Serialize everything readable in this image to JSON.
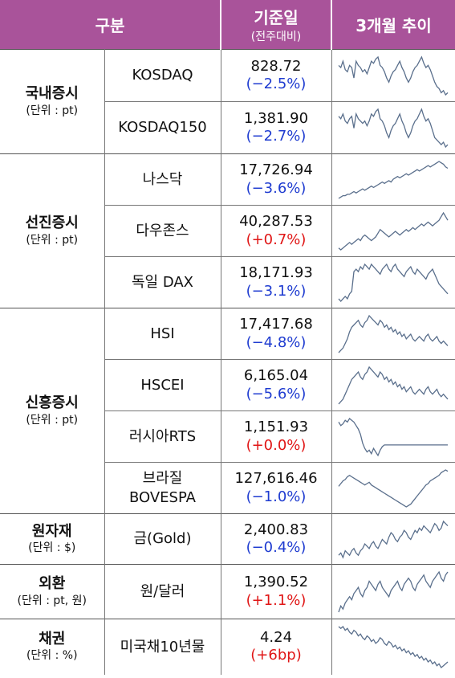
{
  "header": {
    "category": "구분",
    "base_date": "기준일",
    "base_date_sub": "(전주대비)",
    "trend": "3개월 추이"
  },
  "groups": [
    {
      "title": "국내증시",
      "unit": "(단위 : pt)",
      "rows": [
        {
          "name": "KOSDAQ",
          "value": "828.72",
          "change": "(−2.5%)",
          "dir": "neg",
          "trend": [
            58,
            57,
            60,
            56,
            55,
            58,
            57,
            52,
            60,
            58,
            57,
            55,
            56,
            54,
            57,
            60,
            59,
            61,
            62,
            58,
            57,
            55,
            52,
            50,
            53,
            55,
            56,
            58,
            60,
            57,
            55,
            52,
            50,
            52,
            55,
            57,
            58,
            60,
            62,
            59,
            57,
            58,
            56,
            53,
            50,
            48,
            47,
            45,
            46,
            44,
            45
          ]
        },
        {
          "name": "KOSDAQ150",
          "value": "1,381.90",
          "change": "(−2.7%)",
          "dir": "neg",
          "trend": [
            58,
            57,
            59,
            56,
            55,
            57,
            58,
            53,
            59,
            57,
            56,
            55,
            56,
            54,
            56,
            59,
            58,
            60,
            61,
            57,
            56,
            54,
            51,
            49,
            52,
            54,
            55,
            57,
            59,
            56,
            54,
            51,
            49,
            51,
            54,
            56,
            57,
            59,
            61,
            58,
            56,
            57,
            55,
            52,
            49,
            48,
            47,
            46,
            47,
            45,
            46
          ]
        }
      ]
    },
    {
      "title": "선진증시",
      "unit": "(단위 : pt)",
      "rows": [
        {
          "name": "나스닥",
          "value": "17,726.94",
          "change": "(−3.6%)",
          "dir": "neg",
          "trend": [
            40,
            41,
            42,
            42,
            43,
            43,
            44,
            45,
            44,
            45,
            46,
            47,
            46,
            47,
            48,
            49,
            48,
            49,
            50,
            51,
            52,
            51,
            52,
            53,
            52,
            54,
            55,
            56,
            55,
            56,
            57,
            58,
            57,
            58,
            59,
            60,
            61,
            60,
            61,
            62,
            63,
            64,
            63,
            64,
            65,
            66,
            67,
            66,
            65,
            63,
            62
          ]
        },
        {
          "name": "다우존스",
          "value": "40,287.53",
          "change": "(+0.7%)",
          "dir": "pos",
          "trend": [
            47,
            46,
            47,
            48,
            49,
            50,
            49,
            50,
            51,
            52,
            51,
            53,
            54,
            53,
            52,
            51,
            52,
            53,
            55,
            57,
            56,
            55,
            54,
            53,
            54,
            55,
            56,
            55,
            54,
            55,
            56,
            57,
            56,
            57,
            58,
            57,
            58,
            59,
            60,
            59,
            60,
            61,
            60,
            59,
            60,
            61,
            62,
            64,
            66,
            64,
            62
          ]
        },
        {
          "name": "독일 DAX",
          "value": "18,171.93",
          "change": "(−3.1%)",
          "dir": "neg",
          "trend": [
            44,
            43,
            44,
            45,
            44,
            46,
            47,
            55,
            56,
            55,
            57,
            56,
            58,
            57,
            56,
            58,
            57,
            56,
            55,
            54,
            56,
            57,
            58,
            56,
            55,
            57,
            58,
            56,
            55,
            54,
            53,
            55,
            56,
            57,
            55,
            54,
            56,
            55,
            54,
            53,
            52,
            54,
            55,
            56,
            54,
            52,
            50,
            49,
            48,
            47,
            46
          ]
        }
      ]
    },
    {
      "title": "신흥증시",
      "unit": "(단위 : pt)",
      "rows": [
        {
          "name": "HSI",
          "value": "17,417.68",
          "change": "(−4.8%)",
          "dir": "neg",
          "trend": [
            44,
            45,
            46,
            48,
            50,
            53,
            55,
            56,
            57,
            58,
            56,
            55,
            57,
            58,
            60,
            59,
            58,
            57,
            56,
            58,
            57,
            55,
            56,
            54,
            55,
            53,
            54,
            52,
            53,
            51,
            52,
            50,
            51,
            52,
            50,
            49,
            50,
            51,
            50,
            49,
            51,
            52,
            50,
            49,
            50,
            51,
            49,
            48,
            49,
            48,
            47
          ]
        },
        {
          "name": "HSCEI",
          "value": "6,165.04",
          "change": "(−5.6%)",
          "dir": "neg",
          "trend": [
            44,
            45,
            46,
            48,
            50,
            52,
            54,
            55,
            56,
            57,
            55,
            54,
            56,
            57,
            59,
            58,
            57,
            56,
            55,
            57,
            56,
            54,
            55,
            53,
            54,
            52,
            53,
            51,
            52,
            50,
            51,
            49,
            50,
            51,
            49,
            48,
            49,
            50,
            49,
            48,
            50,
            51,
            49,
            48,
            49,
            50,
            48,
            47,
            48,
            47,
            46
          ]
        },
        {
          "name": "러시아RTS",
          "value": "1,151.93",
          "change": "(+0.0%)",
          "dir": "pos",
          "trend": [
            62,
            60,
            61,
            63,
            62,
            64,
            63,
            62,
            60,
            58,
            55,
            50,
            47,
            45,
            46,
            44,
            47,
            45,
            43,
            46,
            48,
            49,
            49,
            49,
            49,
            49,
            49,
            49,
            49,
            49,
            49,
            49,
            49,
            49,
            49,
            49,
            49,
            49,
            49,
            49,
            49,
            49,
            49,
            49,
            49,
            49,
            49,
            49,
            49,
            49,
            49
          ]
        },
        {
          "name": "브라질\nBOVESPA",
          "value": "127,616.46",
          "change": "(−1.0%)",
          "dir": "neg",
          "trend": [
            50,
            52,
            54,
            55,
            57,
            58,
            57,
            56,
            55,
            54,
            53,
            52,
            51,
            52,
            53,
            51,
            50,
            49,
            48,
            47,
            46,
            45,
            44,
            43,
            42,
            41,
            40,
            39,
            38,
            37,
            36,
            35,
            36,
            37,
            39,
            41,
            43,
            45,
            47,
            49,
            51,
            52,
            54,
            55,
            56,
            57,
            58,
            60,
            61,
            62,
            61
          ]
        }
      ]
    },
    {
      "title": "원자재",
      "unit": "(단위 : $)",
      "rows": [
        {
          "name": "금(Gold)",
          "value": "2,400.83",
          "change": "(−0.4%)",
          "dir": "neg",
          "trend": [
            44,
            45,
            43,
            46,
            45,
            44,
            46,
            47,
            45,
            44,
            46,
            47,
            49,
            48,
            47,
            49,
            50,
            48,
            47,
            49,
            51,
            50,
            49,
            52,
            54,
            53,
            51,
            50,
            52,
            53,
            55,
            54,
            52,
            51,
            53,
            55,
            54,
            56,
            55,
            57,
            56,
            55,
            54,
            56,
            58,
            57,
            55,
            56,
            59,
            58,
            57
          ]
        }
      ]
    },
    {
      "title": "외환",
      "unit": "(단위 : pt, 원)",
      "rows": [
        {
          "name": "원/달러",
          "value": "1,390.52",
          "change": "(+1.1%)",
          "dir": "pos",
          "trend": [
            52,
            54,
            53,
            55,
            56,
            57,
            56,
            58,
            59,
            60,
            58,
            57,
            59,
            60,
            62,
            61,
            60,
            59,
            61,
            62,
            60,
            59,
            58,
            57,
            59,
            60,
            61,
            62,
            60,
            59,
            61,
            62,
            63,
            62,
            60,
            59,
            61,
            62,
            63,
            64,
            62,
            61,
            60,
            62,
            63,
            64,
            65,
            63,
            62,
            64,
            65
          ]
        }
      ]
    },
    {
      "title": "채권",
      "unit": "(단위 : %)",
      "rows": [
        {
          "name": "미국채10년물",
          "value": "4.24",
          "change": "(+6bp)",
          "dir": "pos",
          "trend": [
            64,
            63,
            64,
            62,
            63,
            61,
            60,
            62,
            61,
            59,
            60,
            58,
            57,
            59,
            58,
            56,
            57,
            55,
            56,
            58,
            57,
            55,
            54,
            56,
            55,
            53,
            54,
            52,
            53,
            51,
            52,
            50,
            51,
            49,
            50,
            48,
            49,
            47,
            48,
            46,
            47,
            45,
            46,
            44,
            45,
            43,
            44,
            42,
            43,
            44,
            45
          ]
        }
      ]
    }
  ]
}
